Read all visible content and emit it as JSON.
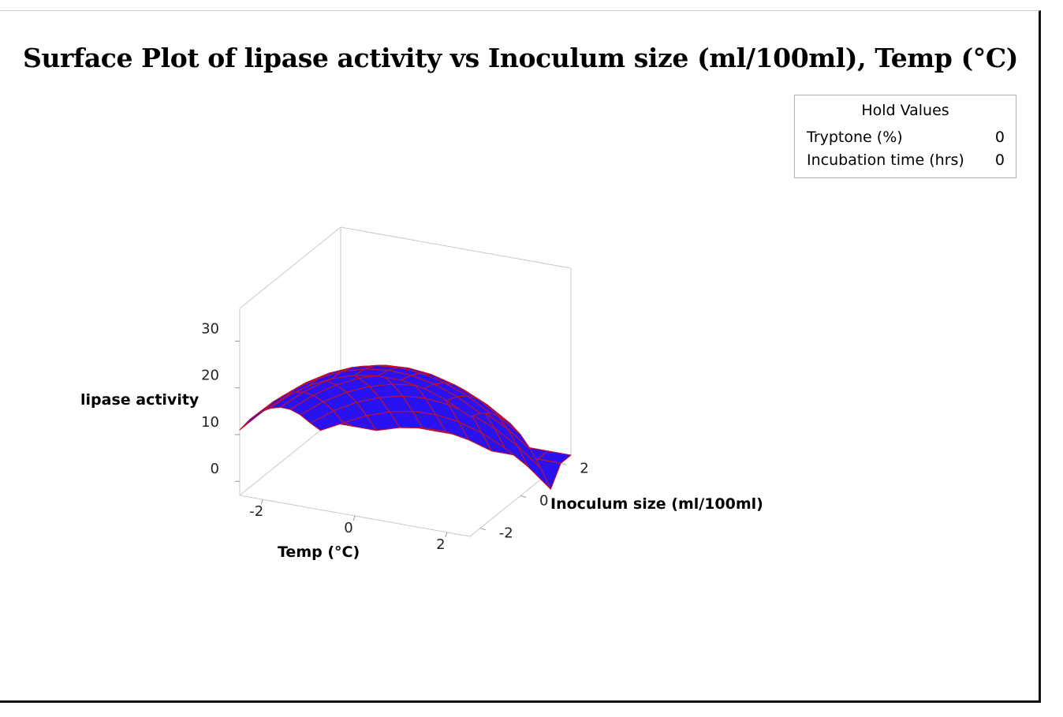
{
  "chart_data": {
    "type": "surface",
    "title": "Surface Plot of lipase activity vs Inoculum size (ml/100ml), Temp (°C)",
    "xlabel": "Temp (°C)",
    "ylabel": "Inoculum size (ml/100ml)",
    "zlabel": "lipase activity",
    "x_ticks": [
      "-2",
      "0",
      "2"
    ],
    "y_ticks": [
      "-2",
      "0",
      "2"
    ],
    "z_ticks": [
      "0",
      "10",
      "20",
      "30"
    ],
    "xlim": [
      -2.5,
      2.5
    ],
    "ylim": [
      -2.5,
      2.5
    ],
    "zlim": [
      -3,
      37
    ],
    "grid_x": [
      -2.5,
      -2.0,
      -1.5,
      -1.0,
      -0.5,
      0.0,
      0.5,
      1.0,
      1.5,
      2.0,
      2.5
    ],
    "grid_y": [
      -2.5,
      -2.0,
      -1.5,
      -1.0,
      -0.5,
      0.0,
      0.5,
      1.0,
      1.5,
      2.0,
      2.5
    ],
    "z_values": [
      [
        11.0,
        15.8,
        19.9,
        23.1,
        25.5,
        27.1,
        27.8,
        27.8,
        26.9,
        25.2,
        22.6
      ],
      [
        11.5,
        16.1,
        19.9,
        23.0,
        25.3,
        26.7,
        27.3,
        27.1,
        26.1,
        24.3,
        21.6
      ],
      [
        11.3,
        15.7,
        19.4,
        22.3,
        24.4,
        25.7,
        26.2,
        25.8,
        24.7,
        22.7,
        19.9
      ],
      [
        10.4,
        14.7,
        18.2,
        20.9,
        22.9,
        24.0,
        24.3,
        23.8,
        22.5,
        20.4,
        17.4
      ],
      [
        8.9,
        13.0,
        16.3,
        18.8,
        20.6,
        21.5,
        21.7,
        21.0,
        19.6,
        17.3,
        14.2
      ],
      [
        6.7,
        10.6,
        13.7,
        16.0,
        17.6,
        18.4,
        18.3,
        17.5,
        15.9,
        13.4,
        10.1
      ],
      [
        3.8,
        7.5,
        10.4,
        12.5,
        13.9,
        14.5,
        14.2,
        13.2,
        11.4,
        8.7,
        5.2
      ],
      [
        0.3,
        3.8,
        6.5,
        8.4,
        9.6,
        10.0,
        9.5,
        8.3,
        6.2,
        3.3,
        -0.5
      ],
      [
        -3.0,
        -0.5,
        1.9,
        3.6,
        4.6,
        4.8,
        4.1,
        2.6,
        0.3,
        -2.8,
        -6.8
      ],
      [
        -3.0,
        -3.0,
        -3.0,
        -1.5,
        -0.7,
        -0.6,
        -1.5,
        -3.0,
        -3.0,
        -3.0,
        -3.0
      ],
      [
        -3.0,
        -3.0,
        -3.0,
        -3.0,
        -3.0,
        -3.0,
        -3.0,
        -3.0,
        -3.0,
        -3.0,
        -3.0
      ]
    ],
    "surface_color": "#2a12f0",
    "mesh_color": "#c0102e",
    "legend_position": "top-right"
  },
  "hold_values": {
    "title": "Hold Values",
    "rows": [
      {
        "label": "Tryptone (%)",
        "value": "0"
      },
      {
        "label": "Incubation time (hrs)",
        "value": "0"
      }
    ]
  }
}
